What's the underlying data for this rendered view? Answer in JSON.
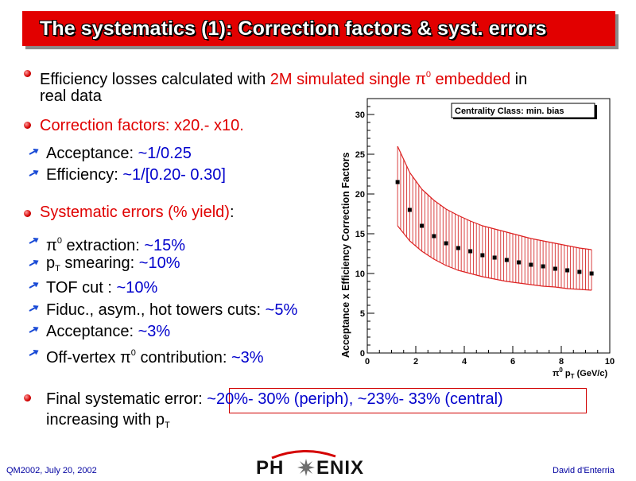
{
  "title": "The systematics (1): Correction factors & syst. errors",
  "bullets": {
    "b1_part1": "Efficiency losses calculated with ",
    "b1_part2": "2M simulated single π",
    "b1_sup": "0",
    "b1_part3": " embedded",
    "b1_part4": " in",
    "b1_line2": "real data",
    "b2": "Correction factors: x20.- x10.",
    "acc_label": "Acceptance: ",
    "acc_value": "~1/0.25",
    "eff_label": "Efficiency: ",
    "eff_value": "~1/[0.20- 0.30]",
    "b3_part1": "Systematic errors (% yield)",
    "b3_part2": ":",
    "s1_pi": "π",
    "s1_sup": "0",
    "s1_label": " extraction: ",
    "s1_value": "~15%",
    "s2_p": "p",
    "s2_sub": "T",
    "s2_label": " smearing: ",
    "s2_value": "~10%",
    "s3_label": "TOF cut : ",
    "s3_value": "~10%",
    "s4_label": "Fiduc., asym., hot towers cuts: ",
    "s4_value": "~5%",
    "s5_label": "Acceptance: ",
    "s5_value": "~3%",
    "s6_label1": "Off-vertex π",
    "s6_sup": "0",
    "s6_label2": " contribution: ",
    "s6_value": "~3%",
    "final_label": "Final systematic error: ",
    "final_value": "~20%- 30% (periph),  ~23%- 33% (central)",
    "final_line2": "increasing with p",
    "final_sub": "T"
  },
  "footer": {
    "left": "QM2002, July 20, 2002",
    "logo_left": "PH",
    "logo_right": "ENIX",
    "right": "David d'Enterria"
  },
  "colors": {
    "title_bg": "#e20000",
    "accent_red": "#e00000",
    "accent_blue": "#0000cc"
  },
  "chart_data": {
    "type": "scatter",
    "legend": "Centrality Class: min. bias",
    "ylabel": "Acceptance x Efficiency Correction Factors",
    "xlabel_pi": "π",
    "xlabel_sup": "0",
    "xlabel_rest": " p",
    "xlabel_sub": "T",
    "xlabel_unit": " (GeV/c)",
    "xlim": [
      0,
      10
    ],
    "ylim": [
      0,
      32
    ],
    "xticks": [
      0,
      2,
      4,
      6,
      8,
      10
    ],
    "yticks": [
      0,
      5,
      10,
      15,
      20,
      25,
      30
    ],
    "x": [
      1.25,
      1.75,
      2.25,
      2.75,
      3.25,
      3.75,
      4.25,
      4.75,
      5.25,
      5.75,
      6.25,
      6.75,
      7.25,
      7.75,
      8.25,
      8.75,
      9.25
    ],
    "y": [
      21.5,
      18.0,
      16.0,
      14.7,
      13.8,
      13.2,
      12.8,
      12.3,
      12.0,
      11.7,
      11.4,
      11.1,
      10.9,
      10.6,
      10.4,
      10.2,
      10.0
    ],
    "band_upper": [
      26.0,
      22.7,
      20.6,
      19.2,
      18.1,
      17.3,
      16.6,
      16.0,
      15.6,
      15.2,
      14.8,
      14.4,
      14.1,
      13.8,
      13.5,
      13.2,
      13.0
    ],
    "band_lower": [
      16.0,
      14.1,
      12.8,
      11.8,
      11.0,
      10.4,
      10.0,
      9.6,
      9.3,
      9.0,
      8.8,
      8.6,
      8.4,
      8.3,
      8.1,
      8.0,
      7.9
    ]
  }
}
